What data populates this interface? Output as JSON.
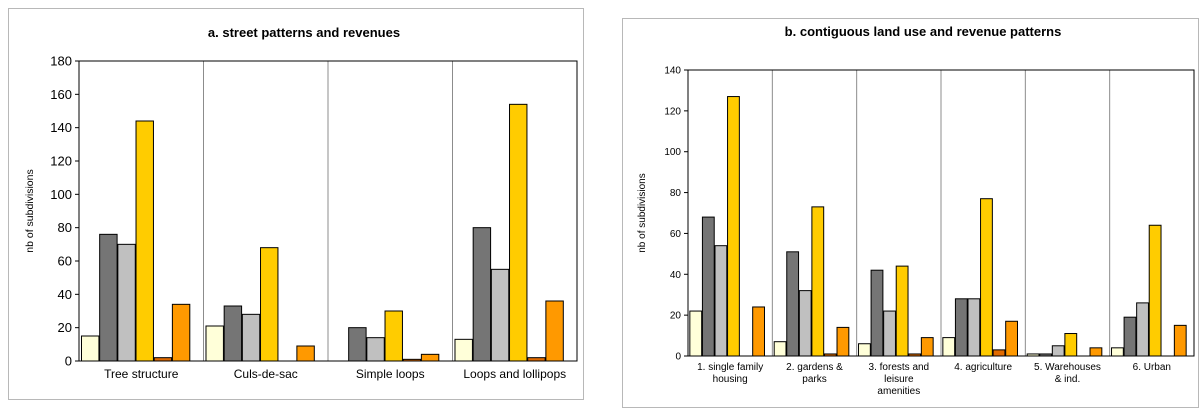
{
  "chart_data": [
    {
      "type": "bar",
      "title": "a. street patterns and revenues",
      "ylabel": "nb of subdivisions",
      "xlabel": "",
      "ylim": [
        0,
        180
      ],
      "yticks": [
        0,
        20,
        40,
        60,
        80,
        100,
        120,
        140,
        160,
        180
      ],
      "grid": true,
      "legend": "none",
      "categories": [
        "Tree structure",
        "Culs-de-sac",
        "Simple loops",
        "Loops and lollipops"
      ],
      "series": [
        {
          "color": "#ffffd9",
          "values": [
            15,
            21,
            0,
            13
          ]
        },
        {
          "color": "#757575",
          "values": [
            76,
            33,
            20,
            80
          ]
        },
        {
          "color": "#c0c0c0",
          "values": [
            70,
            28,
            14,
            55
          ]
        },
        {
          "color": "#ffcc00",
          "values": [
            144,
            68,
            30,
            154
          ]
        },
        {
          "color": "#e06a00",
          "values": [
            2,
            0,
            1,
            2
          ]
        },
        {
          "color": "#ff9900",
          "values": [
            34,
            9,
            4,
            36
          ]
        }
      ]
    },
    {
      "type": "bar",
      "title": "b. contiguous land use and revenue patterns",
      "ylabel": "nb of subdivisions",
      "xlabel": "",
      "ylim": [
        0,
        140
      ],
      "yticks": [
        0,
        20,
        40,
        60,
        80,
        100,
        120,
        140
      ],
      "grid": true,
      "legend": "none",
      "categories": [
        [
          "1. single family",
          "housing"
        ],
        [
          "2. gardens &",
          "parks"
        ],
        [
          "3. forests and",
          "leisure",
          "amenities"
        ],
        [
          "4. agriculture"
        ],
        [
          "5. Warehouses",
          "& ind."
        ],
        [
          "6. Urban"
        ]
      ],
      "series": [
        {
          "color": "#ffffd9",
          "values": [
            22,
            7,
            6,
            9,
            1,
            4
          ]
        },
        {
          "color": "#757575",
          "values": [
            68,
            51,
            42,
            28,
            1,
            19
          ]
        },
        {
          "color": "#c0c0c0",
          "values": [
            54,
            32,
            22,
            28,
            5,
            26
          ]
        },
        {
          "color": "#ffcc00",
          "values": [
            127,
            73,
            44,
            77,
            11,
            64
          ]
        },
        {
          "color": "#e06a00",
          "values": [
            0,
            1,
            1,
            3,
            0,
            0
          ]
        },
        {
          "color": "#ff9900",
          "values": [
            24,
            14,
            9,
            17,
            4,
            15
          ]
        }
      ]
    }
  ]
}
